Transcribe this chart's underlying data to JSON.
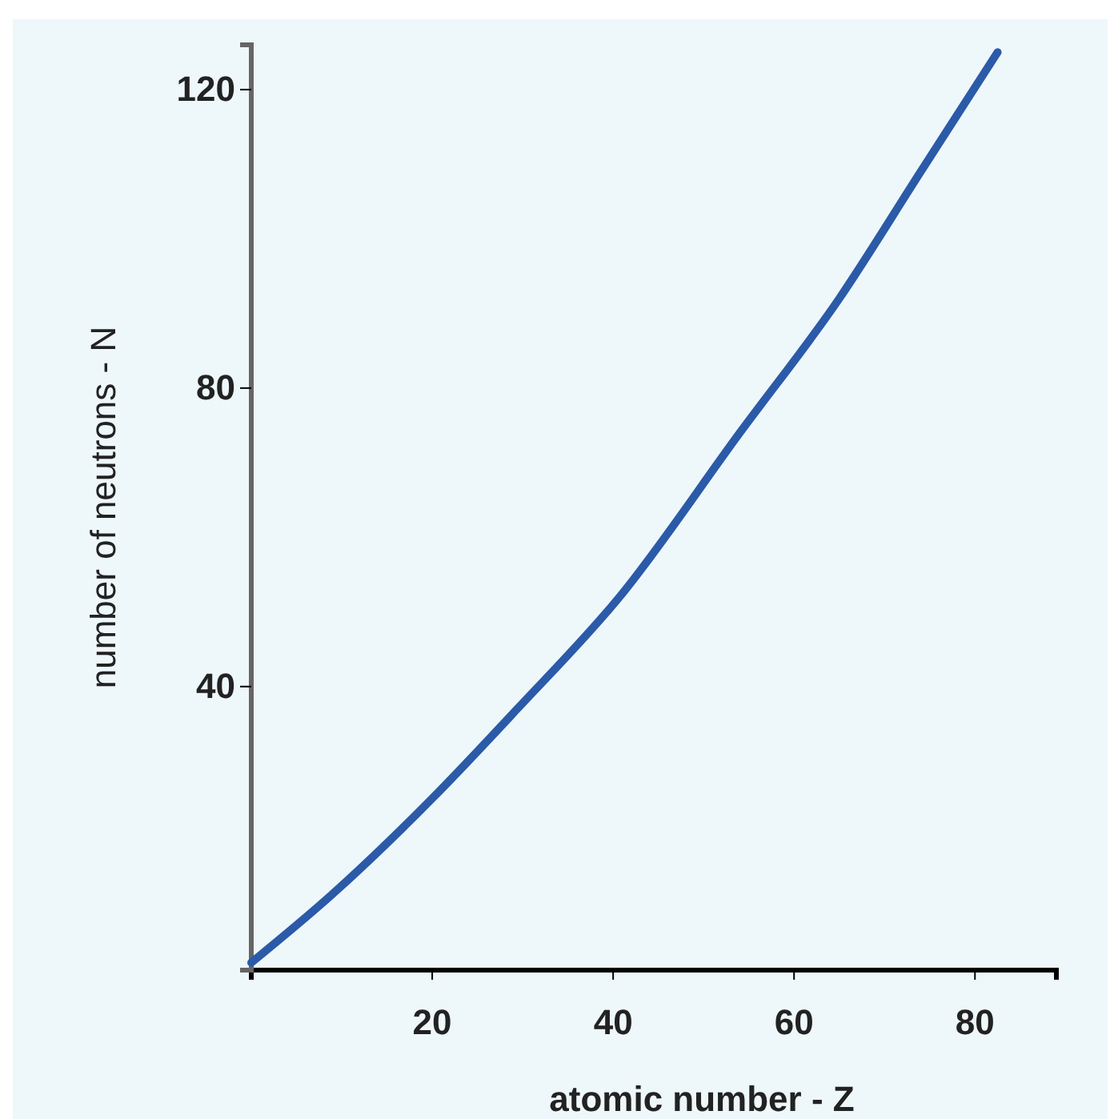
{
  "chart_data": {
    "type": "line",
    "xlabel": "atomic number - Z",
    "ylabel": "number of neutrons - N",
    "x": [
      0,
      8.8,
      20,
      29.4,
      40.7,
      54,
      65,
      74,
      82.5
    ],
    "series": [
      {
        "color": "#2b5aa8",
        "values": [
          3,
          12,
          25,
          37,
          52,
          74,
          92,
          109,
          125
        ]
      }
    ],
    "xlim": [
      0,
      89
    ],
    "ylim": [
      2,
      126
    ],
    "xticks": [
      20,
      40,
      60,
      80
    ],
    "yticks": [
      40,
      80,
      120
    ],
    "grid": false,
    "marker": "none",
    "line_style": "solid"
  }
}
